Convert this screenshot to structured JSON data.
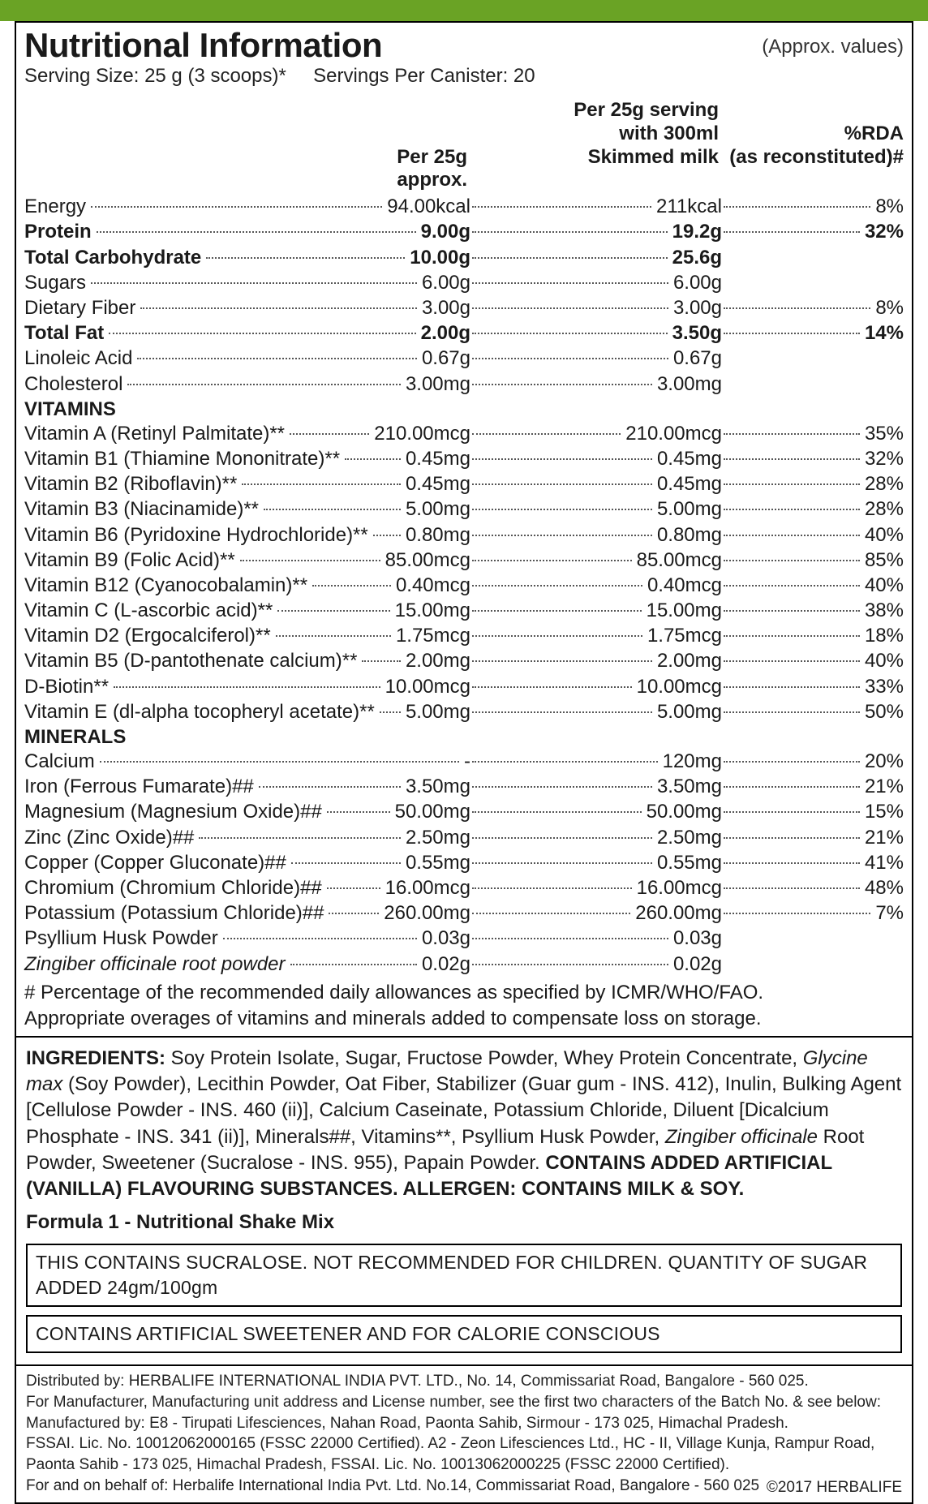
{
  "colors": {
    "accent_bar": "#6aa325",
    "bg": "#ffffff",
    "text": "#1a1a1a",
    "border": "#000000",
    "dot": "#555555"
  },
  "title": "Nutritional Information",
  "approx_note": "(Approx. values)",
  "serving_size_label": "Serving Size: 25 g (3 scoops)*",
  "servings_per_label": "Servings Per Canister: 20",
  "col_headers": {
    "a": "Per 25g approx.",
    "b_line1": "Per 25g serving",
    "b_line2": "with 300ml",
    "b_line3": "Skimmed milk",
    "c_line1": "%RDA",
    "c_line2": "(as reconstituted)#"
  },
  "sections": [
    {
      "rows": [
        {
          "label": "Energy",
          "bold": false,
          "a": "94.00kcal",
          "b": "211kcal",
          "c": "8%"
        },
        {
          "label": "Protein",
          "bold": true,
          "a": "9.00g",
          "b": "19.2g",
          "c": "32%"
        },
        {
          "label": "Total Carbohydrate",
          "bold": true,
          "a": "10.00g",
          "b": "25.6g",
          "c": ""
        },
        {
          "label": "Sugars",
          "bold": false,
          "a": "6.00g",
          "b": "6.00g",
          "c": ""
        },
        {
          "label": "Dietary Fiber",
          "bold": false,
          "a": "3.00g",
          "b": "3.00g",
          "c": "8%"
        },
        {
          "label": "Total Fat",
          "bold": true,
          "a": "2.00g",
          "b": "3.50g",
          "c": "14%"
        },
        {
          "label": "Linoleic Acid",
          "bold": false,
          "a": "0.67g",
          "b": "0.67g",
          "c": ""
        },
        {
          "label": "Cholesterol",
          "bold": false,
          "a": "3.00mg",
          "b": "3.00mg",
          "c": ""
        }
      ]
    },
    {
      "heading": "VITAMINS",
      "rows": [
        {
          "label": "Vitamin A (Retinyl Palmitate)**",
          "a": "210.00mcg",
          "b": "210.00mcg",
          "c": "35%"
        },
        {
          "label": "Vitamin B1 (Thiamine Mononitrate)**",
          "a": "0.45mg",
          "b": "0.45mg",
          "c": "32%"
        },
        {
          "label": "Vitamin B2 (Riboflavin)**",
          "a": "0.45mg",
          "b": "0.45mg",
          "c": "28%"
        },
        {
          "label": "Vitamin B3 (Niacinamide)**",
          "a": "5.00mg",
          "b": "5.00mg",
          "c": "28%"
        },
        {
          "label": "Vitamin B6 (Pyridoxine Hydrochloride)**",
          "a": "0.80mg",
          "b": "0.80mg",
          "c": "40%"
        },
        {
          "label": "Vitamin B9 (Folic Acid)**",
          "a": "85.00mcg",
          "b": "85.00mcg",
          "c": "85%"
        },
        {
          "label": "Vitamin B12 (Cyanocobalamin)**",
          "a": "0.40mcg",
          "b": "0.40mcg",
          "c": "40%"
        },
        {
          "label": "Vitamin C (L-ascorbic acid)**",
          "a": "15.00mg",
          "b": "15.00mg",
          "c": "38%"
        },
        {
          "label": "Vitamin D2 (Ergocalciferol)**",
          "a": "1.75mcg",
          "b": "1.75mcg",
          "c": "18%"
        },
        {
          "label": "Vitamin B5 (D-pantothenate calcium)**",
          "a": "2.00mg",
          "b": "2.00mg",
          "c": "40%"
        },
        {
          "label": "D-Biotin**",
          "a": "10.00mcg",
          "b": "10.00mcg",
          "c": "33%"
        },
        {
          "label": "Vitamin E (dl-alpha tocopheryl acetate)**",
          "a": "5.00mg",
          "b": "5.00mg",
          "c": "50%"
        }
      ]
    },
    {
      "heading": "MINERALS",
      "rows": [
        {
          "label": "Calcium",
          "a": "-",
          "b": "120mg",
          "c": "20%"
        },
        {
          "label": "Iron (Ferrous Fumarate)##",
          "a": "3.50mg",
          "b": "3.50mg",
          "c": "21%"
        },
        {
          "label": "Magnesium (Magnesium Oxide)##",
          "a": "50.00mg",
          "b": "50.00mg",
          "c": "15%"
        },
        {
          "label": "Zinc (Zinc Oxide)##",
          "a": "2.50mg",
          "b": "2.50mg",
          "c": "21%"
        },
        {
          "label": "Copper (Copper Gluconate)##",
          "a": "0.55mg",
          "b": "0.55mg",
          "c": "41%"
        },
        {
          "label": "Chromium (Chromium Chloride)##",
          "a": "16.00mcg",
          "b": "16.00mcg",
          "c": "48%"
        },
        {
          "label": "Potassium (Potassium Chloride)##",
          "a": "260.00mg",
          "b": "260.00mg",
          "c": "7%"
        },
        {
          "label": "Psyllium Husk Powder",
          "a": "0.03g",
          "b": "0.03g",
          "c": ""
        },
        {
          "label": "Zingiber officinale root powder",
          "italic_label": true,
          "a": "0.02g",
          "b": "0.02g",
          "c": ""
        }
      ]
    }
  ],
  "footnotes": [
    "# Percentage of the recommended daily allowances as specified by ICMR/WHO/FAO.",
    "Appropriate overages of vitamins and minerals added to compensate loss on storage."
  ],
  "ingredients_label": "INGREDIENTS:",
  "ingredients_text": " Soy Protein Isolate, Sugar, Fructose Powder, Whey Protein Concentrate, <i>Glycine max</i> (Soy Powder), Lecithin Powder, Oat Fiber, Stabilizer (Guar gum - INS. 412), Inulin, Bulking Agent [Cellulose Powder - INS. 460 (ii)], Calcium Caseinate, Potassium Chloride, Diluent [Dicalcium Phosphate - INS. 341 (ii)], Minerals##, Vitamins**, Psyllium Husk Powder, <i>Zingiber officinale</i> Root Powder, Sweetener (Sucralose - INS. 955), Papain Powder. ",
  "ingredients_bold_tail": "CONTAINS ADDED ARTIFICIAL (VANILLA) FLAVOURING SUBSTANCES. ALLERGEN: CONTAINS MILK & SOY.",
  "product_name": "Formula 1 - Nutritional Shake Mix",
  "warnings": [
    "THIS CONTAINS SUCRALOSE. NOT RECOMMENDED FOR CHILDREN. QUANTITY OF SUGAR ADDED 24gm/100gm",
    "CONTAINS ARTIFICIAL SWEETENER AND FOR CALORIE CONSCIOUS"
  ],
  "distribution": [
    "Distributed by: HERBALIFE INTERNATIONAL INDIA PVT. LTD., No. 14, Commissariat Road, Bangalore - 560 025.",
    "For Manufacturer, Manufacturing unit address and License number, see the first two characters of the Batch No. & see below:",
    "Manufactured by: E8 - Tirupati Lifesciences, Nahan Road, Paonta Sahib, Sirmour - 173 025, Himachal Pradesh.",
    "FSSAI. Lic. No. 10012062000165 (FSSC 22000 Certified). A2 - Zeon Lifesciences Ltd., HC - II, Village Kunja, Rampur Road,",
    "Paonta Sahib - 173 025, Himachal Pradesh, FSSAI. Lic. No. 10013062000225 (FSSC 22000 Certified).",
    "For and on behalf of: Herbalife International India Pvt. Ltd. No.14, Commissariat Road, Bangalore - 560 025"
  ],
  "copyright": "©2017 HERBALIFE"
}
